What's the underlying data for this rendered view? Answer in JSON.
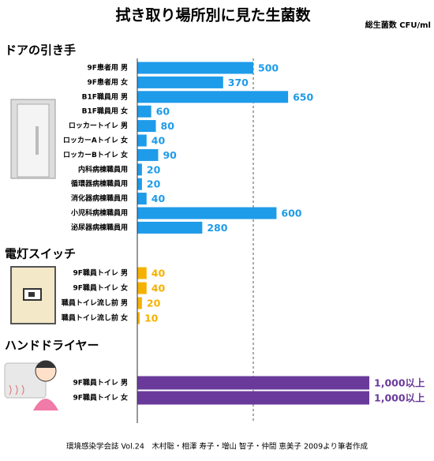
{
  "title": "拭き取り場所別に見た生菌数",
  "unit": "総生菌数 CFU/ml",
  "source": "環境感染学会誌 Vol.24　木村聡・相澤 寿子・増山 智子・仲間 恵美子 2009より筆者作成",
  "chart_data": [
    {
      "type": "bar",
      "orientation": "horizontal",
      "title": "ドアの引き手",
      "categories": [
        "9F患者用 男",
        "9F患者用 女",
        "B1F職員用 男",
        "B1F職員用 女",
        "ロッカートイレ 男",
        "ロッカーAトイレ 女",
        "ロッカーBトイレ 女",
        "内科病棟職員用",
        "循環器病棟職員用",
        "消化器病棟職員用",
        "小児科病棟職員用",
        "泌尿器病棟職員用"
      ],
      "values": [
        500,
        370,
        650,
        60,
        80,
        40,
        90,
        20,
        20,
        40,
        600,
        280
      ],
      "color": "#1e9be9",
      "xlim": [
        0,
        1000
      ],
      "reference_lines": [
        500
      ]
    },
    {
      "type": "bar",
      "orientation": "horizontal",
      "title": "電灯スイッチ",
      "categories": [
        "9F職員トイレ 男",
        "9F職員トイレ 女",
        "職員トイレ流し前 男",
        "職員トイレ流し前 女"
      ],
      "values": [
        40,
        40,
        20,
        10
      ],
      "color": "#f5b100",
      "xlim": [
        0,
        1000
      ],
      "reference_lines": [
        500
      ]
    },
    {
      "type": "bar",
      "orientation": "horizontal",
      "title": "ハンドドライヤー",
      "categories": [
        "9F職員トイレ 男",
        "9F職員トイレ 女"
      ],
      "values": [
        1000,
        1000
      ],
      "value_labels": [
        "1,000以上",
        "1,000以上"
      ],
      "color": "#6a3a9a",
      "xlim": [
        0,
        1000
      ],
      "reference_lines": [
        500
      ]
    }
  ]
}
